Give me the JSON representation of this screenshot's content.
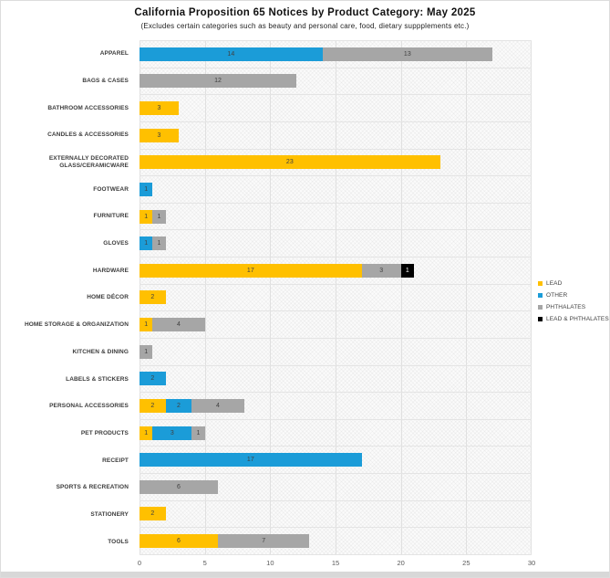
{
  "chart_data": {
    "type": "bar",
    "orientation": "horizontal",
    "stacked": true,
    "title": "California Proposition 65 Notices by Product Category: May 2025",
    "subtitle": "(Excludes certain categories such as beauty and personal care, food, dietary suppplements etc.)",
    "xlabel": "",
    "ylabel": "",
    "xlim": [
      0,
      30
    ],
    "xticks": [
      0,
      5,
      10,
      15,
      20,
      25,
      30
    ],
    "grid": "vertical-major-and-category-separators",
    "data_labels": true,
    "legend_position": "middle-right",
    "categories": [
      "APPAREL",
      "BAGS & CASES",
      "BATHROOM ACCESSORIES",
      "CANDLES & ACCESSORIES",
      "EXTERNALLY DECORATED GLASS/CERAMICWARE",
      "FOOTWEAR",
      "FURNITURE",
      "GLOVES",
      "HARDWARE",
      "HOME DÉCOR",
      "HOME STORAGE & ORGANIZATION",
      "KITCHEN & DINING",
      "LABELS & STICKERS",
      "PERSONAL ACCESSORIES",
      "PET PRODUCTS",
      "RECEIPT",
      "SPORTS & RECREATION",
      "STATIONERY",
      "TOOLS"
    ],
    "series": [
      {
        "name": "LEAD",
        "color": "#FFC000",
        "label_color": "#404040",
        "values": [
          0,
          0,
          3,
          3,
          23,
          0,
          1,
          0,
          17,
          2,
          1,
          0,
          0,
          2,
          1,
          0,
          0,
          2,
          6
        ]
      },
      {
        "name": "OTHER",
        "color": "#1B9CD8",
        "label_color": "#404040",
        "values": [
          14,
          0,
          0,
          0,
          0,
          1,
          0,
          1,
          0,
          0,
          0,
          0,
          2,
          2,
          3,
          17,
          0,
          0,
          0
        ]
      },
      {
        "name": "PHTHALATES",
        "color": "#A6A6A6",
        "label_color": "#404040",
        "values": [
          13,
          12,
          0,
          0,
          0,
          0,
          1,
          1,
          3,
          0,
          4,
          1,
          0,
          4,
          1,
          0,
          6,
          0,
          7
        ]
      },
      {
        "name": "LEAD & PHTHALATES",
        "color": "#000000",
        "label_color": "#FFFFFF",
        "values": [
          0,
          0,
          0,
          0,
          0,
          0,
          0,
          0,
          1,
          0,
          0,
          0,
          0,
          0,
          0,
          0,
          0,
          0,
          0
        ]
      }
    ]
  }
}
